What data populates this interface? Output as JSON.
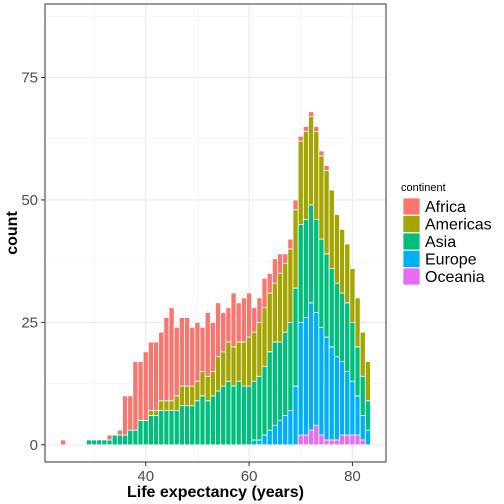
{
  "chart_data": {
    "type": "bar",
    "stacked": true,
    "title": "",
    "xlabel": "Life expectancy (years)",
    "ylabel": "count",
    "xlim": [
      20.5,
      86.5
    ],
    "ylim": [
      -3.5,
      90
    ],
    "x_ticks": [
      40,
      60,
      80
    ],
    "y_ticks": [
      0,
      25,
      50,
      75
    ],
    "bin_width": 1,
    "grid": true,
    "legend": {
      "title": "continent",
      "position": "right"
    },
    "x": [
      24,
      29,
      30,
      31,
      32,
      33,
      34,
      35,
      36,
      37,
      38,
      39,
      40,
      41,
      42,
      43,
      44,
      45,
      46,
      47,
      48,
      49,
      50,
      51,
      52,
      53,
      54,
      55,
      56,
      57,
      58,
      59,
      60,
      61,
      62,
      63,
      64,
      65,
      66,
      67,
      68,
      69,
      70,
      71,
      72,
      73,
      74,
      75,
      76,
      77,
      78,
      79,
      80,
      81,
      82,
      83
    ],
    "series": [
      {
        "name": "Africa",
        "color": "#F8766D",
        "values": [
          1,
          0,
          0,
          0,
          0,
          1,
          0,
          1,
          8,
          7,
          14,
          12,
          14,
          14,
          14,
          14,
          17,
          19,
          14,
          14,
          14,
          12,
          12,
          9,
          13,
          10,
          11,
          8,
          7,
          11,
          8,
          9,
          9,
          5,
          5,
          6,
          4,
          5,
          4,
          2,
          2,
          2,
          1,
          1,
          1,
          1,
          1,
          1,
          0,
          0,
          0,
          0,
          0,
          0,
          0,
          0
        ]
      },
      {
        "name": "Americas",
        "color": "#A3A500",
        "values": [
          0,
          0,
          0,
          0,
          0,
          0,
          0,
          0,
          0,
          0,
          0,
          0,
          0,
          1,
          1,
          2,
          2,
          2,
          3,
          4,
          4,
          4,
          4,
          5,
          5,
          5,
          7,
          7,
          8,
          8,
          8,
          9,
          10,
          10,
          11,
          12,
          12,
          12,
          14,
          14,
          15,
          16,
          17,
          18,
          18,
          18,
          17,
          17,
          16,
          14,
          13,
          12,
          11,
          10,
          9,
          8
        ]
      },
      {
        "name": "Asia",
        "color": "#00BF7D",
        "values": [
          0,
          1,
          1,
          1,
          1,
          1,
          2,
          2,
          2,
          3,
          3,
          5,
          5,
          6,
          6,
          7,
          7,
          7,
          7,
          8,
          8,
          8,
          9,
          10,
          9,
          10,
          11,
          12,
          13,
          12,
          13,
          12,
          12,
          12,
          13,
          14,
          16,
          17,
          16,
          17,
          18,
          20,
          20,
          20,
          20,
          19,
          18,
          17,
          16,
          15,
          14,
          14,
          12,
          10,
          8,
          6
        ]
      },
      {
        "name": "Europe",
        "color": "#00B0F6",
        "values": [
          0,
          0,
          0,
          0,
          0,
          0,
          0,
          0,
          0,
          0,
          0,
          0,
          0,
          0,
          0,
          0,
          0,
          0,
          0,
          0,
          0,
          0,
          0,
          0,
          0,
          0,
          0,
          0,
          0,
          0,
          0,
          0,
          0,
          1,
          1,
          2,
          3,
          4,
          5,
          6,
          7,
          12,
          23,
          24,
          26,
          23,
          22,
          21,
          19,
          17,
          15,
          13,
          11,
          8,
          5,
          3
        ]
      },
      {
        "name": "Oceania",
        "color": "#E76BF3",
        "values": [
          0,
          0,
          0,
          0,
          0,
          0,
          0,
          0,
          0,
          0,
          0,
          0,
          0,
          0,
          0,
          0,
          0,
          0,
          0,
          0,
          0,
          0,
          0,
          0,
          0,
          0,
          0,
          0,
          0,
          0,
          0,
          0,
          0,
          0,
          0,
          0,
          0,
          0,
          0,
          0,
          0,
          0,
          2,
          2,
          3,
          4,
          2,
          1,
          1,
          1,
          2,
          2,
          2,
          2,
          1,
          0
        ]
      }
    ]
  }
}
